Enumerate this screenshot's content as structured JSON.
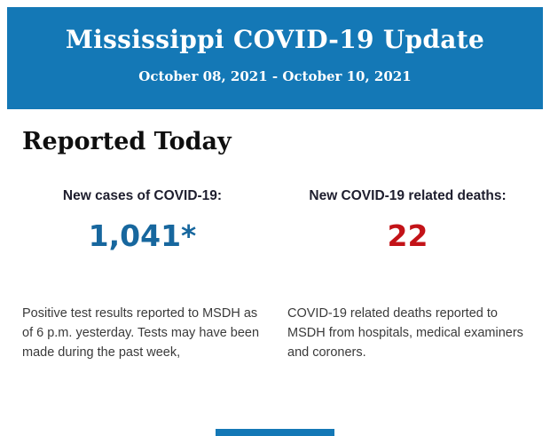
{
  "header": {
    "title": "Mississippi COVID-19 Update",
    "date_range": "October 08, 2021 - October 10, 2021",
    "background_color": "#1478B6",
    "text_color": "#FFFFFF"
  },
  "section": {
    "heading": "Reported Today"
  },
  "stats": [
    {
      "label": "New cases of COVID-19:",
      "value": "1,041*",
      "value_color": "#17679E",
      "description": "Positive test results reported to MSDH as of 6 p.m. yesterday. Tests may have been made during the past week,"
    },
    {
      "label": "New COVID-19 related deaths:",
      "value": "22",
      "value_color": "#C31318",
      "description": "COVID-19 related deaths reported to MSDH from hospitals, medical examiners and coroners."
    }
  ],
  "footer": {
    "accent_color": "#1478B6"
  }
}
